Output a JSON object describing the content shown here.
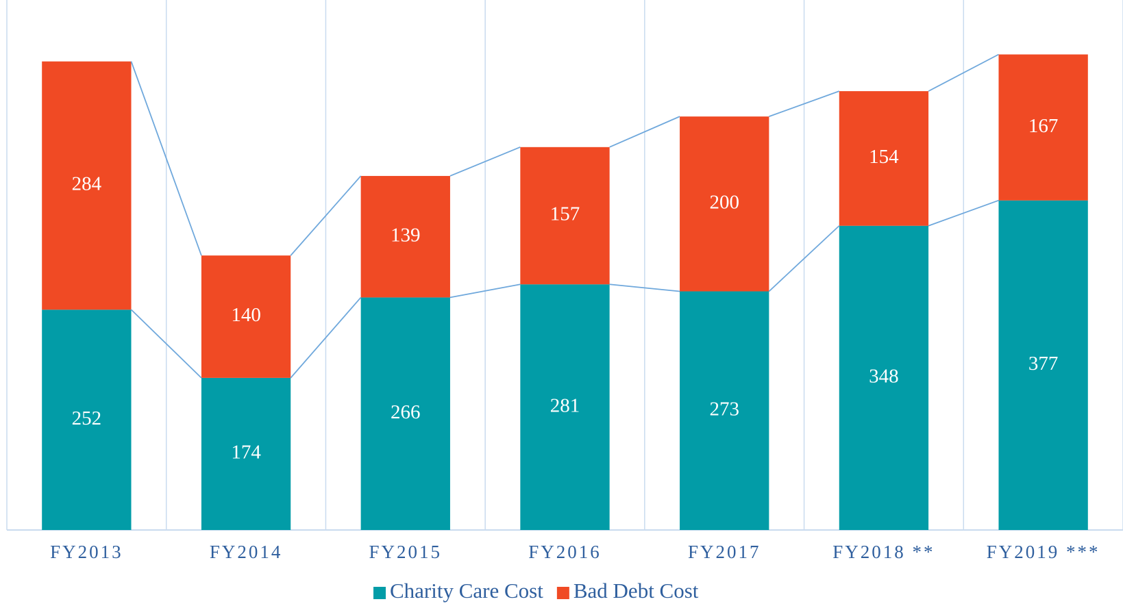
{
  "chart_data": {
    "type": "stacked_bar",
    "categories": [
      "FY2013",
      "FY2014",
      "FY2015",
      "FY2016",
      "FY2017",
      "FY2018 **",
      "FY2019 ***"
    ],
    "series": [
      {
        "name": "Charity Care Cost",
        "color": "#029ca7",
        "values": [
          252,
          174,
          266,
          281,
          273,
          348,
          377
        ]
      },
      {
        "name": "Bad Debt Cost",
        "color": "#f04a24",
        "values": [
          284,
          140,
          139,
          157,
          200,
          154,
          167
        ]
      }
    ],
    "ylim": [
      0,
      600
    ],
    "grid": true,
    "connector_color": "#6fa8dc",
    "legend": "bottom"
  }
}
